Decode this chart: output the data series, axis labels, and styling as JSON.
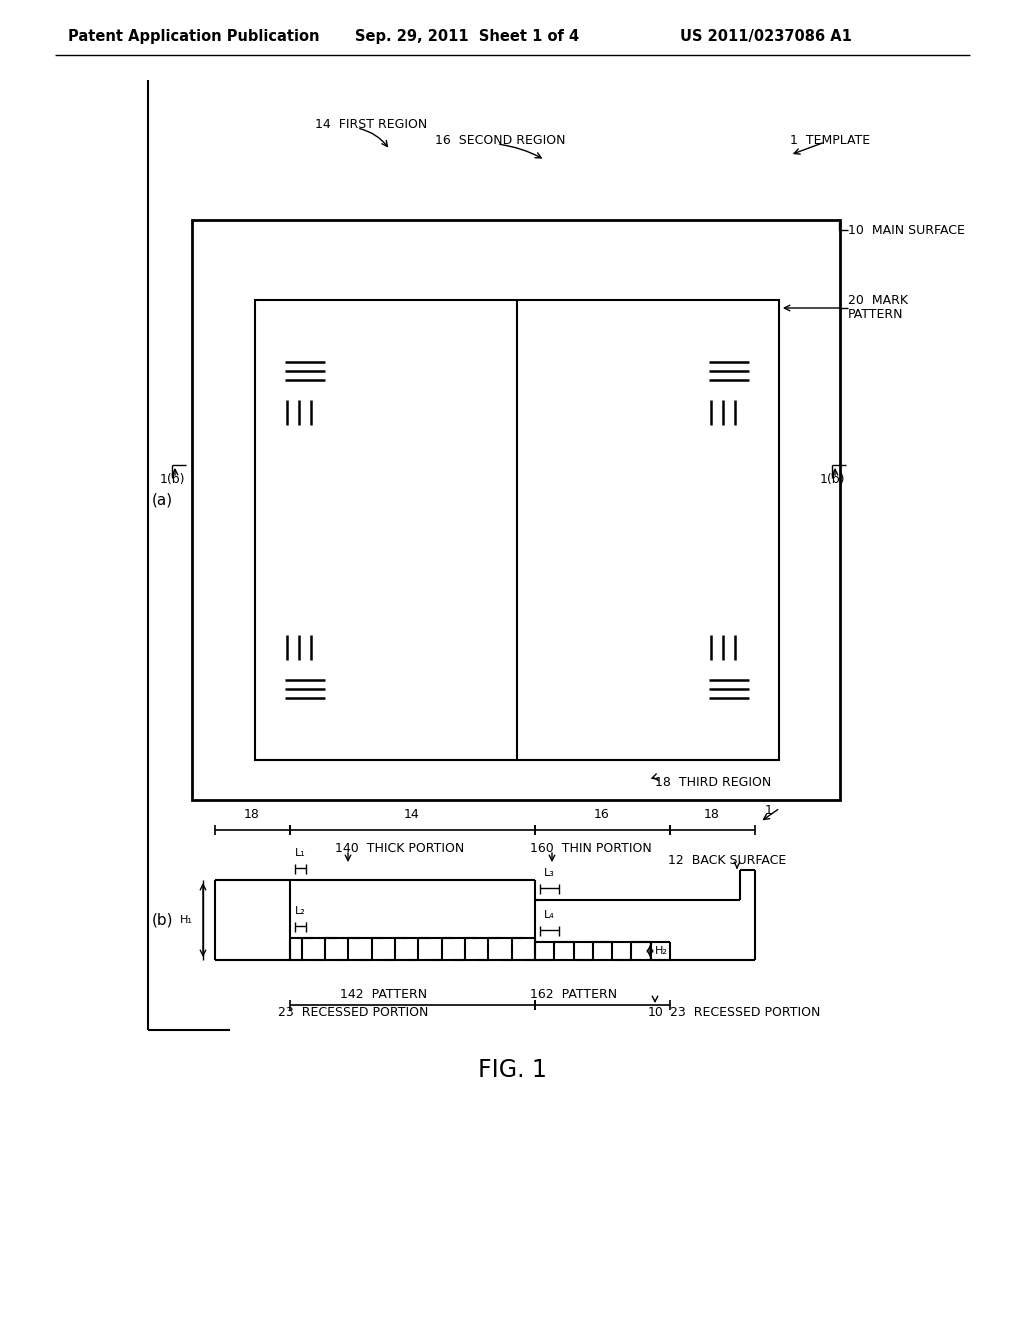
{
  "bg_color": "#ffffff",
  "header_left": "Patent Application Publication",
  "header_mid": "Sep. 29, 2011  Sheet 1 of 4",
  "header_right": "US 2011/0237086 A1",
  "fig_label": "FIG. 1"
}
